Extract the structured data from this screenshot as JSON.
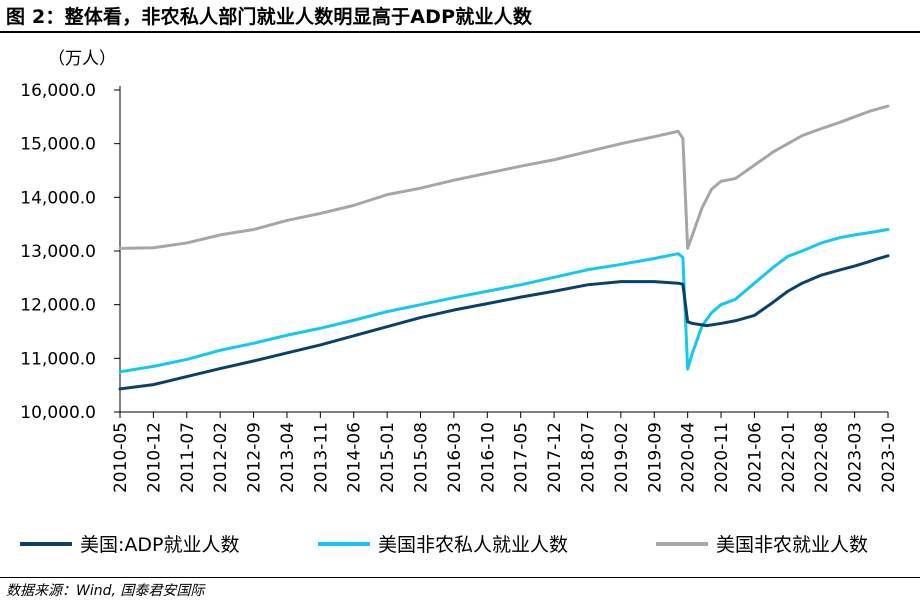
{
  "figure": {
    "title": "图 2：整体看，非农私人部门就业人数明显高于ADP就业人数",
    "source": "数据来源：Wind, 国泰君安国际"
  },
  "chart_data": {
    "type": "line",
    "unit_label": "（万人）",
    "ylim": [
      10000,
      16000
    ],
    "y_ticks": [
      "10,000.0",
      "11,000.0",
      "12,000.0",
      "13,000.0",
      "14,000.0",
      "15,000.0",
      "16,000.0"
    ],
    "x_ticks": [
      "2010-05",
      "2010-12",
      "2011-07",
      "2012-02",
      "2012-09",
      "2013-04",
      "2013-11",
      "2014-06",
      "2015-01",
      "2015-08",
      "2016-03",
      "2016-10",
      "2017-05",
      "2017-12",
      "2018-07",
      "2019-02",
      "2019-09",
      "2020-04",
      "2020-11",
      "2021-06",
      "2022-01",
      "2022-08",
      "2023-03",
      "2023-10"
    ],
    "x_start": "2010-05",
    "x_end": "2023-10",
    "grid": false,
    "legend_position": "bottom",
    "colors": {
      "adp": "#0d3f6b",
      "private": "#14c8f0",
      "nonfarm": "#a6a6a6"
    },
    "series": [
      {
        "name": "美国:ADP就业人数",
        "points": [
          [
            "2010-05",
            10430
          ],
          [
            "2010-12",
            10510
          ],
          [
            "2011-07",
            10660
          ],
          [
            "2012-02",
            10810
          ],
          [
            "2012-09",
            10950
          ],
          [
            "2013-04",
            11100
          ],
          [
            "2013-11",
            11250
          ],
          [
            "2014-06",
            11420
          ],
          [
            "2015-01",
            11590
          ],
          [
            "2015-08",
            11760
          ],
          [
            "2016-03",
            11900
          ],
          [
            "2016-10",
            12020
          ],
          [
            "2017-05",
            12140
          ],
          [
            "2017-12",
            12250
          ],
          [
            "2018-07",
            12370
          ],
          [
            "2019-02",
            12430
          ],
          [
            "2019-09",
            12430
          ],
          [
            "2020-02",
            12400
          ],
          [
            "2020-03",
            12380
          ],
          [
            "2020-04",
            11680
          ],
          [
            "2020-05",
            11650
          ],
          [
            "2020-08",
            11610
          ],
          [
            "2020-11",
            11650
          ],
          [
            "2021-02",
            11700
          ],
          [
            "2021-06",
            11800
          ],
          [
            "2021-10",
            12050
          ],
          [
            "2022-01",
            12250
          ],
          [
            "2022-04",
            12400
          ],
          [
            "2022-08",
            12550
          ],
          [
            "2022-12",
            12650
          ],
          [
            "2023-03",
            12720
          ],
          [
            "2023-06",
            12800
          ],
          [
            "2023-08",
            12860
          ],
          [
            "2023-10",
            12910
          ]
        ]
      },
      {
        "name": "美国非农私人就业人数",
        "points": [
          [
            "2010-05",
            10750
          ],
          [
            "2010-12",
            10850
          ],
          [
            "2011-07",
            10980
          ],
          [
            "2012-02",
            11150
          ],
          [
            "2012-09",
            11280
          ],
          [
            "2013-04",
            11430
          ],
          [
            "2013-11",
            11560
          ],
          [
            "2014-06",
            11710
          ],
          [
            "2015-01",
            11870
          ],
          [
            "2015-08",
            12000
          ],
          [
            "2016-03",
            12130
          ],
          [
            "2016-10",
            12250
          ],
          [
            "2017-05",
            12370
          ],
          [
            "2017-12",
            12510
          ],
          [
            "2018-07",
            12650
          ],
          [
            "2019-02",
            12750
          ],
          [
            "2019-09",
            12860
          ],
          [
            "2020-02",
            12950
          ],
          [
            "2020-03",
            12880
          ],
          [
            "2020-04",
            10800
          ],
          [
            "2020-05",
            11100
          ],
          [
            "2020-07",
            11600
          ],
          [
            "2020-09",
            11850
          ],
          [
            "2020-11",
            12000
          ],
          [
            "2021-02",
            12100
          ],
          [
            "2021-06",
            12400
          ],
          [
            "2021-10",
            12700
          ],
          [
            "2022-01",
            12900
          ],
          [
            "2022-04",
            13000
          ],
          [
            "2022-08",
            13150
          ],
          [
            "2022-12",
            13250
          ],
          [
            "2023-03",
            13300
          ],
          [
            "2023-06",
            13340
          ],
          [
            "2023-10",
            13400
          ]
        ]
      },
      {
        "name": "美国非农就业人数",
        "points": [
          [
            "2010-05",
            13050
          ],
          [
            "2010-12",
            13060
          ],
          [
            "2011-07",
            13150
          ],
          [
            "2012-02",
            13300
          ],
          [
            "2012-09",
            13400
          ],
          [
            "2013-04",
            13570
          ],
          [
            "2013-11",
            13700
          ],
          [
            "2014-06",
            13850
          ],
          [
            "2015-01",
            14050
          ],
          [
            "2015-08",
            14170
          ],
          [
            "2016-03",
            14320
          ],
          [
            "2016-10",
            14450
          ],
          [
            "2017-05",
            14580
          ],
          [
            "2017-12",
            14700
          ],
          [
            "2018-07",
            14850
          ],
          [
            "2019-02",
            15000
          ],
          [
            "2019-09",
            15130
          ],
          [
            "2020-02",
            15230
          ],
          [
            "2020-03",
            15100
          ],
          [
            "2020-04",
            13050
          ],
          [
            "2020-05",
            13300
          ],
          [
            "2020-07",
            13800
          ],
          [
            "2020-09",
            14150
          ],
          [
            "2020-11",
            14300
          ],
          [
            "2021-02",
            14350
          ],
          [
            "2021-06",
            14600
          ],
          [
            "2021-10",
            14850
          ],
          [
            "2022-01",
            15000
          ],
          [
            "2022-04",
            15150
          ],
          [
            "2022-08",
            15280
          ],
          [
            "2022-12",
            15400
          ],
          [
            "2023-03",
            15500
          ],
          [
            "2023-06",
            15600
          ],
          [
            "2023-10",
            15700
          ]
        ]
      }
    ]
  }
}
